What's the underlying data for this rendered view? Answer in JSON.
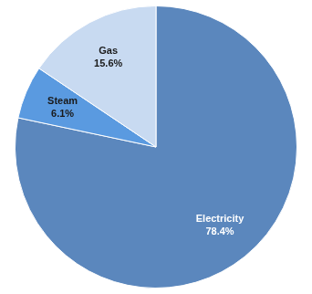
{
  "chart_data": {
    "type": "pie",
    "categories": [
      "Electricity",
      "Steam",
      "Gas"
    ],
    "values": [
      78.4,
      6.1,
      15.6
    ],
    "value_labels": [
      "78.4%",
      "6.1%",
      "15.6%"
    ],
    "colors": [
      "#5b87bd",
      "#5a9ae0",
      "#c8daf1"
    ],
    "data_labels": true
  }
}
